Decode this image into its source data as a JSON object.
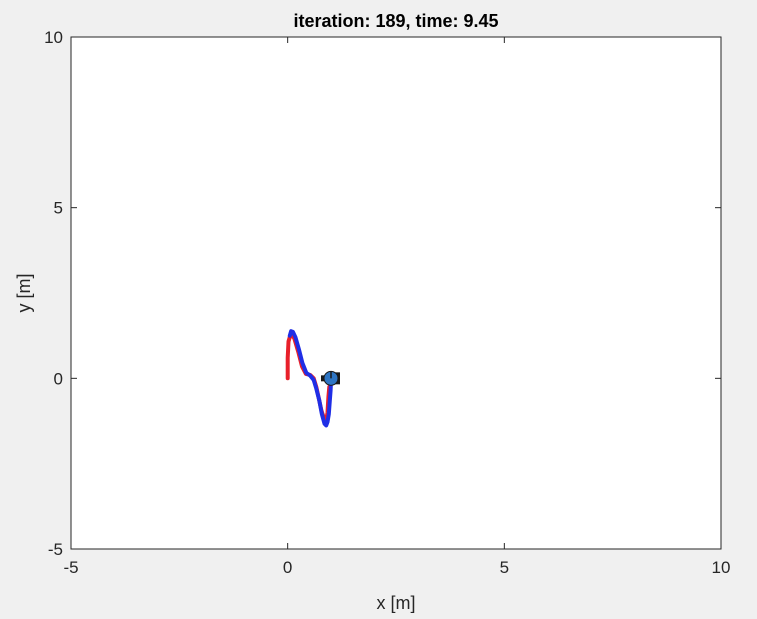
{
  "chart_data": {
    "type": "line",
    "title": "iteration: 189, time: 9.45",
    "xlabel": "x [m]",
    "ylabel": "y [m]",
    "xlim": [
      -5,
      10
    ],
    "ylim": [
      -5,
      10
    ],
    "xticks": [
      "-5",
      "0",
      "5",
      "10"
    ],
    "yticks": [
      "10",
      "5",
      "0",
      "-5"
    ],
    "grid": false,
    "legend": "none",
    "series": [
      {
        "color": "#e8202a",
        "x": [
          0.0,
          0.0,
          0.02,
          0.07,
          0.15,
          0.25,
          0.33,
          0.42,
          0.52,
          0.6,
          0.66,
          0.72,
          0.78,
          0.84,
          0.88,
          0.9,
          0.92,
          0.94,
          0.96
        ],
        "y": [
          0.0,
          0.6,
          1.08,
          1.3,
          1.18,
          0.75,
          0.35,
          0.13,
          0.1,
          0.0,
          -0.25,
          -0.6,
          -0.95,
          -1.18,
          -1.22,
          -1.15,
          -1.0,
          -0.55,
          -0.25
        ]
      },
      {
        "color": "#1f2ee6",
        "x": [
          0.05,
          0.08,
          0.12,
          0.18,
          0.26,
          0.34,
          0.43,
          0.52,
          0.6,
          0.66,
          0.73,
          0.79,
          0.85,
          0.89,
          0.92,
          0.95,
          0.97,
          0.99,
          1.0,
          1.0,
          1.0
        ],
        "y": [
          1.25,
          1.38,
          1.36,
          1.2,
          0.85,
          0.45,
          0.16,
          0.08,
          -0.05,
          -0.3,
          -0.65,
          -1.05,
          -1.33,
          -1.38,
          -1.28,
          -1.05,
          -0.7,
          -0.35,
          -0.1,
          0.0,
          0.05
        ]
      }
    ],
    "robot": {
      "x": 1.0,
      "y": 0.0,
      "color": "#2e75c3"
    }
  }
}
